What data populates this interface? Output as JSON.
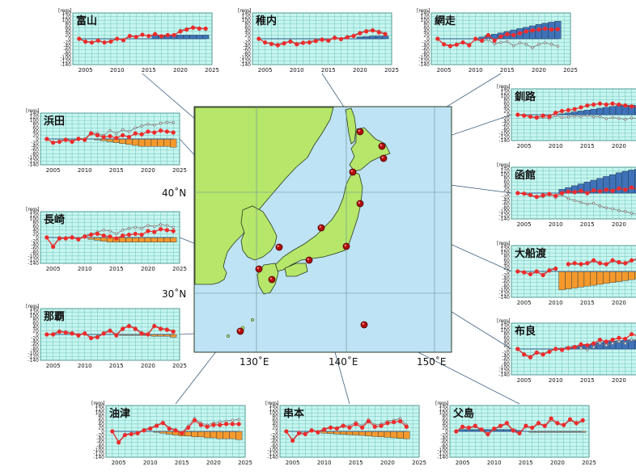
{
  "chart_data": {
    "type": "composite",
    "unit_label": "[mm]",
    "map": {
      "lat_ticks": [
        "30˚N",
        "40˚N"
      ],
      "lon_ticks": [
        "130˚E",
        "140˚E",
        "150˚E"
      ],
      "colors": {
        "sea": "#bde3f4",
        "land": "#b6e66a",
        "coast": "#2a3a20",
        "grid": "#6a8f9a"
      }
    },
    "panel_defaults": {
      "x_ticks": [
        "2005",
        "2010",
        "2015",
        "2020",
        "2025"
      ],
      "y_ticks": [
        "140",
        "120",
        "100",
        "80",
        "60",
        "40",
        "20",
        "0",
        "-20",
        "-40",
        "-60",
        "-80",
        "-100",
        "-120",
        "-140"
      ],
      "xlim": [
        2003,
        2025
      ],
      "ylim": [
        -140,
        140
      ]
    },
    "colors": {
      "panel_bg": "#c6f5ef",
      "panel_grid": "#5bbab0",
      "bar_up": "#3f72b8",
      "bar_down": "#f5992c",
      "red_series": "#ee2b2b",
      "gray_series": "#7a7a7a",
      "line": "#2d5c8a"
    },
    "stations": [
      {
        "name": "富山",
        "years": [
          2004,
          2005,
          2006,
          2007,
          2008,
          2009,
          2010,
          2011,
          2012,
          2013,
          2014,
          2015,
          2016,
          2017,
          2018,
          2019,
          2020,
          2021,
          2022,
          2023,
          2024
        ],
        "red": [
          0,
          -16,
          -20,
          -10,
          -20,
          -15,
          0,
          -8,
          15,
          10,
          22,
          15,
          25,
          14,
          20,
          20,
          40,
          50,
          60,
          55,
          55
        ],
        "gray": [
          0,
          -12,
          -18,
          -8,
          -18,
          -12,
          2,
          -4,
          18,
          12,
          24,
          12,
          28,
          10,
          22,
          18,
          46,
          55,
          65,
          60,
          50
        ],
        "bars": [
          0,
          0,
          0,
          0,
          0,
          0,
          0,
          0,
          0,
          0,
          0,
          0,
          20,
          20,
          20,
          20,
          20,
          20,
          20,
          20,
          20
        ]
      },
      {
        "name": "稚内",
        "years": [
          2004,
          2005,
          2006,
          2007,
          2008,
          2009,
          2010,
          2011,
          2012,
          2013,
          2014,
          2015,
          2016,
          2017,
          2018,
          2019,
          2020,
          2021,
          2022,
          2023,
          2024
        ],
        "red": [
          0,
          -20,
          -28,
          -35,
          -25,
          -15,
          -30,
          -22,
          -20,
          -12,
          -5,
          -10,
          5,
          -2,
          8,
          15,
          30,
          40,
          45,
          35,
          25
        ],
        "gray": [
          0,
          -18,
          -25,
          -30,
          -20,
          -10,
          -25,
          -18,
          -15,
          -8,
          0,
          -5,
          10,
          2,
          12,
          20,
          35,
          45,
          50,
          42,
          30
        ],
        "bars": [
          0,
          0,
          0,
          0,
          0,
          0,
          0,
          0,
          0,
          0,
          0,
          0,
          0,
          0,
          0,
          0,
          10,
          12,
          15,
          15,
          15
        ]
      },
      {
        "name": "網走",
        "years": [
          2004,
          2005,
          2006,
          2007,
          2008,
          2009,
          2010,
          2011,
          2012,
          2013,
          2014,
          2015,
          2016,
          2017,
          2018,
          2019,
          2020,
          2021,
          2022,
          2023
        ],
        "red": [
          0,
          -30,
          -40,
          -32,
          -20,
          -35,
          0,
          -10,
          20,
          -10,
          12,
          25,
          20,
          30,
          40,
          45,
          50,
          55,
          50,
          52
        ],
        "gray": [
          0,
          -28,
          -35,
          -30,
          -15,
          -30,
          -5,
          -15,
          -5,
          -28,
          -20,
          -15,
          -38,
          -22,
          -30,
          -48,
          -30,
          -22,
          -30,
          -40
        ],
        "bars": [
          0,
          0,
          0,
          0,
          0,
          0,
          0,
          10,
          18,
          25,
          32,
          40,
          48,
          55,
          62,
          70,
          78,
          85,
          90,
          95
        ]
      },
      {
        "name": "釧路",
        "years": [
          2004,
          2005,
          2006,
          2007,
          2008,
          2009,
          2010,
          2011,
          2012,
          2013,
          2014,
          2015,
          2016,
          2017,
          2018,
          2019,
          2020,
          2021,
          2022,
          2023,
          2024
        ],
        "red": [
          0,
          -5,
          -10,
          -15,
          -5,
          -10,
          10,
          20,
          25,
          30,
          40,
          50,
          55,
          60,
          55,
          60,
          55,
          50,
          45,
          40,
          30
        ],
        "gray": [
          0,
          -5,
          -12,
          -20,
          -15,
          -22,
          -5,
          -15,
          -12,
          -8,
          -10,
          -5,
          -12,
          -10,
          -22,
          -15,
          -20,
          -25,
          -18,
          -20,
          -15
        ],
        "bars": [
          0,
          0,
          0,
          0,
          0,
          0,
          0,
          5,
          10,
          15,
          20,
          25,
          30,
          35,
          40,
          45,
          50,
          52,
          52,
          50,
          48
        ]
      },
      {
        "name": "函館",
        "years": [
          2004,
          2005,
          2006,
          2007,
          2008,
          2009,
          2010,
          2011,
          2012,
          2013,
          2014,
          2015,
          2016,
          2017,
          2018,
          2019,
          2020,
          2021,
          2022,
          2023,
          2024
        ],
        "red": [
          0,
          -3,
          -10,
          -20,
          -12,
          -5,
          -15,
          0,
          8,
          5,
          12,
          0,
          15,
          10,
          18,
          12,
          25,
          18,
          30,
          20,
          18
        ],
        "gray": [
          0,
          -5,
          -15,
          -25,
          -20,
          -10,
          -25,
          -10,
          -30,
          -40,
          -50,
          -60,
          -55,
          -70,
          -80,
          -85,
          -95,
          -100,
          -110,
          -115,
          -120
        ],
        "bars": [
          0,
          0,
          0,
          0,
          0,
          0,
          0,
          20,
          30,
          40,
          50,
          60,
          70,
          80,
          90,
          100,
          110,
          118,
          125,
          130,
          135
        ]
      },
      {
        "name": "大船渡",
        "years": [
          2004,
          2005,
          2006,
          2007,
          2008,
          2009,
          2010,
          2011,
          2012,
          2013,
          2014,
          2015,
          2016,
          2017,
          2018,
          2019,
          2020,
          2021,
          2022,
          2023,
          2024
        ],
        "red": [
          0,
          -5,
          -15,
          0,
          -20,
          5,
          15,
          null,
          40,
          45,
          40,
          45,
          60,
          45,
          40,
          60,
          50,
          45,
          60,
          70,
          55
        ],
        "gray": [
          0,
          -5,
          -15,
          -5,
          -15,
          10,
          20,
          null,
          35,
          40,
          35,
          40,
          55,
          40,
          35,
          55,
          45,
          40,
          55,
          65,
          50
        ],
        "bars": [
          0,
          0,
          0,
          0,
          0,
          0,
          0,
          -100,
          -95,
          -90,
          -85,
          -80,
          -75,
          -70,
          -65,
          -60,
          -55,
          -50,
          -45,
          -40,
          -35
        ]
      },
      {
        "name": "布良",
        "years": [
          2004,
          2005,
          2006,
          2007,
          2008,
          2009,
          2010,
          2011,
          2012,
          2013,
          2014,
          2015,
          2016,
          2017,
          2018,
          2019,
          2020,
          2021,
          2022,
          2023,
          2024
        ],
        "red": [
          0,
          -30,
          -45,
          -20,
          -30,
          -15,
          0,
          -5,
          5,
          10,
          25,
          20,
          30,
          50,
          40,
          50,
          60,
          55,
          80,
          70,
          70
        ],
        "gray": [
          0,
          -25,
          -40,
          -15,
          -25,
          -10,
          5,
          0,
          8,
          15,
          5,
          -5,
          10,
          30,
          20,
          30,
          40,
          30,
          50,
          45,
          40
        ],
        "bars": [
          0,
          0,
          0,
          0,
          0,
          0,
          0,
          5,
          10,
          15,
          20,
          25,
          30,
          35,
          40,
          42,
          45,
          48,
          50,
          50,
          50
        ]
      },
      {
        "name": "浜田",
        "years": [
          2004,
          2005,
          2006,
          2007,
          2008,
          2009,
          2010,
          2011,
          2012,
          2013,
          2014,
          2015,
          2016,
          2017,
          2018,
          2019,
          2020,
          2021,
          2022,
          2023,
          2024
        ],
        "red": [
          0,
          -20,
          -15,
          -5,
          -15,
          0,
          -5,
          30,
          20,
          10,
          15,
          5,
          20,
          10,
          30,
          25,
          40,
          35,
          45,
          40,
          35
        ],
        "gray": [
          0,
          -18,
          -12,
          0,
          -10,
          5,
          0,
          35,
          30,
          20,
          45,
          30,
          50,
          40,
          60,
          70,
          80,
          75,
          85,
          90,
          88
        ],
        "bars": [
          0,
          0,
          0,
          0,
          0,
          0,
          0,
          0,
          -5,
          -10,
          -15,
          -20,
          -25,
          -30,
          -35,
          -40,
          -40,
          -40,
          -40,
          -40,
          -45
        ]
      },
      {
        "name": "長崎",
        "years": [
          2004,
          2005,
          2006,
          2007,
          2008,
          2009,
          2010,
          2011,
          2012,
          2013,
          2014,
          2015,
          2016,
          2017,
          2018,
          2019,
          2020,
          2021,
          2022,
          2023,
          2024
        ],
        "red": [
          0,
          -50,
          -5,
          -5,
          0,
          -10,
          5,
          15,
          20,
          10,
          5,
          -5,
          10,
          15,
          20,
          15,
          35,
          30,
          45,
          40,
          35
        ],
        "gray": [
          0,
          -45,
          0,
          0,
          5,
          -5,
          10,
          20,
          30,
          40,
          35,
          20,
          40,
          50,
          55,
          50,
          65,
          60,
          70,
          65,
          55
        ],
        "bars": [
          0,
          0,
          0,
          0,
          0,
          0,
          0,
          -10,
          -15,
          -20,
          -25,
          -25,
          -25,
          -25,
          -25,
          -25,
          -25,
          -25,
          -25,
          -25,
          -25
        ]
      },
      {
        "name": "那覇",
        "years": [
          2004,
          2005,
          2006,
          2007,
          2008,
          2009,
          2010,
          2011,
          2012,
          2013,
          2014,
          2015,
          2016,
          2017,
          2018,
          2019,
          2020,
          2021,
          2022,
          2023,
          2024
        ],
        "red": [
          0,
          0,
          15,
          10,
          5,
          -5,
          5,
          -20,
          -15,
          5,
          20,
          -5,
          30,
          45,
          30,
          5,
          0,
          45,
          30,
          25,
          15
        ],
        "gray": [
          0,
          5,
          20,
          15,
          10,
          0,
          10,
          -15,
          -10,
          10,
          25,
          0,
          35,
          50,
          35,
          10,
          5,
          50,
          35,
          30,
          20
        ],
        "bars": [
          0,
          0,
          0,
          0,
          0,
          0,
          0,
          0,
          0,
          0,
          0,
          0,
          -5,
          -5,
          -5,
          -5,
          -5,
          -10,
          -10,
          -10,
          -15
        ]
      },
      {
        "name": "油津",
        "years": [
          2004,
          2005,
          2006,
          2007,
          2008,
          2009,
          2010,
          2011,
          2012,
          2013,
          2014,
          2015,
          2016,
          2017,
          2018,
          2019,
          2020,
          2021,
          2022,
          2023,
          2024
        ],
        "red": [
          0,
          -60,
          -20,
          -15,
          -10,
          5,
          15,
          30,
          45,
          15,
          5,
          -10,
          20,
          60,
          35,
          25,
          35,
          35,
          40,
          40,
          40
        ],
        "gray": [
          0,
          -55,
          -15,
          -10,
          -5,
          10,
          20,
          35,
          50,
          20,
          10,
          -5,
          30,
          70,
          45,
          35,
          45,
          50,
          55,
          60,
          65
        ],
        "bars": [
          0,
          0,
          0,
          0,
          0,
          0,
          0,
          -5,
          -10,
          -15,
          -20,
          -25,
          -25,
          -30,
          -30,
          -35,
          -35,
          -40,
          -40,
          -40,
          -45
        ]
      },
      {
        "name": "串本",
        "years": [
          2004,
          2005,
          2006,
          2007,
          2008,
          2009,
          2010,
          2011,
          2012,
          2013,
          2014,
          2015,
          2016,
          2017,
          2018,
          2019,
          2020,
          2021,
          2022,
          2023
        ],
        "red": [
          0,
          -50,
          -10,
          -15,
          5,
          -5,
          10,
          20,
          15,
          30,
          20,
          40,
          20,
          55,
          25,
          30,
          45,
          50,
          55,
          25
        ],
        "gray": [
          0,
          -45,
          -5,
          -10,
          10,
          0,
          15,
          25,
          20,
          35,
          30,
          50,
          30,
          65,
          35,
          40,
          55,
          60,
          70,
          35
        ],
        "bars": [
          0,
          0,
          0,
          0,
          0,
          0,
          -10,
          -12,
          -14,
          -16,
          -18,
          -20,
          -22,
          -25,
          -28,
          -30,
          -32,
          -35,
          -38,
          -40
        ]
      },
      {
        "name": "父島",
        "years": [
          2004,
          2005,
          2006,
          2007,
          2008,
          2009,
          2010,
          2011,
          2012,
          2013,
          2014,
          2015,
          2016,
          2017,
          2018,
          2019,
          2020,
          2021,
          2022,
          2023,
          2024
        ],
        "red": [
          0,
          25,
          20,
          30,
          10,
          -15,
          15,
          30,
          45,
          5,
          -10,
          30,
          20,
          45,
          30,
          70,
          45,
          35,
          65,
          45,
          60
        ],
        "gray": [
          0,
          20,
          15,
          25,
          5,
          -20,
          10,
          25,
          40,
          0,
          -15,
          25,
          15,
          40,
          25,
          60,
          40,
          30,
          60,
          40,
          55
        ],
        "bars": [
          0,
          10,
          10,
          10,
          10,
          10,
          10,
          10,
          10,
          10,
          5,
          0,
          -5,
          -5,
          -5,
          -5,
          -5,
          -5,
          -5,
          -5,
          -5
        ]
      }
    ]
  }
}
